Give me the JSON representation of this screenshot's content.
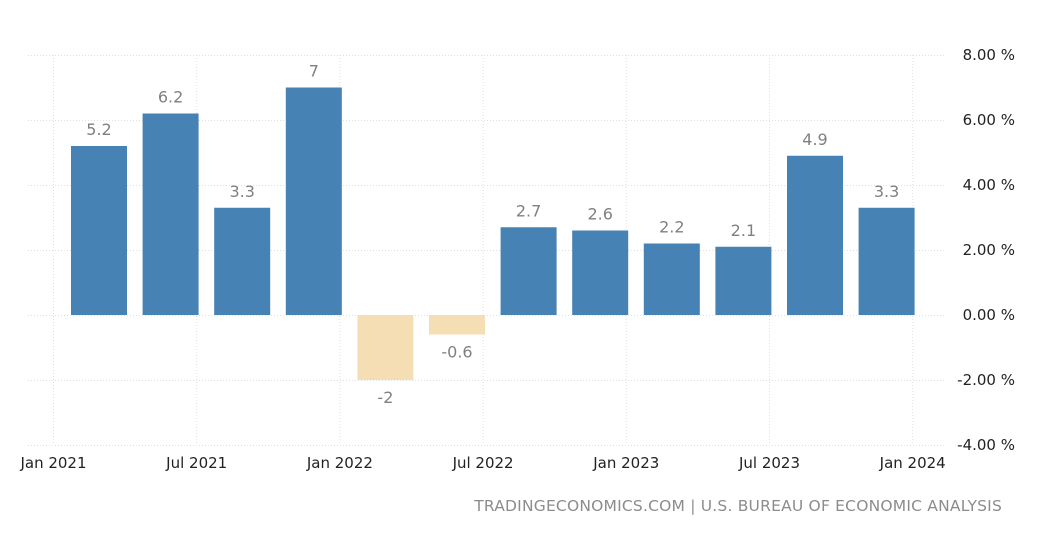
{
  "chart_data": {
    "type": "bar",
    "categories": [
      "2021-Q1",
      "2021-Q2",
      "2021-Q3",
      "2021-Q4",
      "2022-Q1",
      "2022-Q2",
      "2022-Q3",
      "2022-Q4",
      "2023-Q1",
      "2023-Q2",
      "2023-Q3",
      "2023-Q4"
    ],
    "values": [
      5.2,
      6.2,
      3.3,
      7,
      -2,
      -0.6,
      2.7,
      2.6,
      2.2,
      2.1,
      4.9,
      3.3
    ],
    "value_labels": [
      "5.2",
      "6.2",
      "3.3",
      "7",
      "-2",
      "-0.6",
      "2.7",
      "2.6",
      "2.2",
      "2.1",
      "4.9",
      "3.3"
    ],
    "x_tick_labels": [
      "Jan 2021",
      "Jul 2021",
      "Jan 2022",
      "Jul 2022",
      "Jan 2023",
      "Jul 2023",
      "Jan 2024"
    ],
    "y_tick_labels": [
      "8.00 %",
      "6.00 %",
      "4.00 %",
      "2.00 %",
      "0.00 %",
      "-2.00 %",
      "-4.00 %"
    ],
    "y_ticks": [
      8,
      6,
      4,
      2,
      0,
      -2,
      -4
    ],
    "ylim": [
      -4,
      8
    ],
    "y_axis_position": "right",
    "grid": true,
    "colors": {
      "positive": "#4682b4",
      "negative": "#f5deb3",
      "grid": "#e0e0e0",
      "label": "#808080"
    },
    "title": "",
    "xlabel": "",
    "ylabel": ""
  },
  "footer": {
    "source": "TRADINGECONOMICS.COM | U.S. BUREAU OF ECONOMIC ANALYSIS"
  }
}
